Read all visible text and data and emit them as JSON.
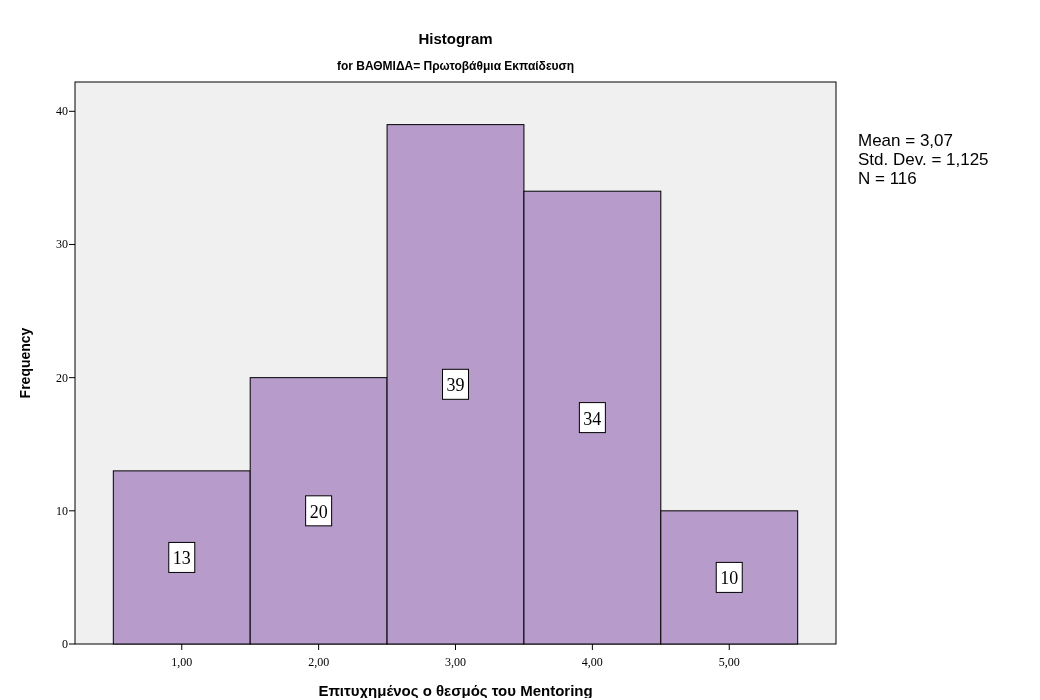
{
  "chart_data": {
    "type": "histogram",
    "title": "Histogram",
    "subtitle": "for ΒΑΘΜΙΔΑ= Πρωτοβάθμια Εκπαίδευση",
    "xlabel": "Επιτυχημένος ο θεσμός του Mentoring",
    "ylabel": "Frequency",
    "bins": [
      0.5,
      1.5,
      2.5,
      3.5,
      4.5,
      5.5
    ],
    "values": [
      13,
      20,
      39,
      34,
      10
    ],
    "color": "#b79bcb",
    "data_labels": true,
    "xlim": [
      0.22,
      5.78
    ],
    "xticks": [
      {
        "value": 1,
        "label": "1,00"
      },
      {
        "value": 2,
        "label": "2,00"
      },
      {
        "value": 3,
        "label": "3,00"
      },
      {
        "value": 4,
        "label": "4,00"
      },
      {
        "value": 5,
        "label": "5,00"
      }
    ],
    "ylim": [
      0,
      42.2
    ],
    "yticks": [
      0,
      10,
      20,
      30,
      40
    ],
    "grid": false,
    "annotations": [
      "Mean = 3,07",
      "Std. Dev. = 1,125",
      "N = 116"
    ]
  }
}
